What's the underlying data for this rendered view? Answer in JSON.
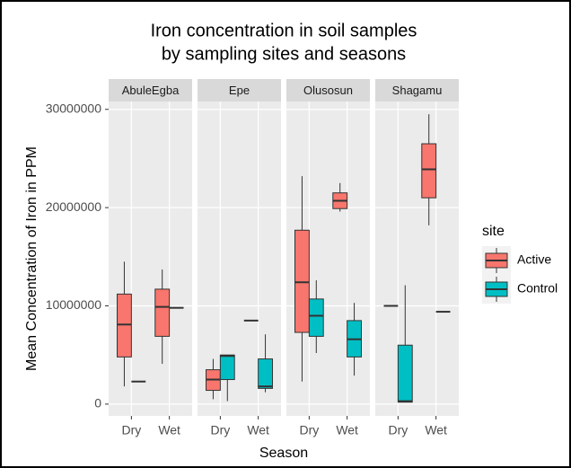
{
  "chart_data": {
    "type": "box",
    "title": [
      "Iron concentration in soil samples",
      "by sampling sites and seasons"
    ],
    "xlabel": "Season",
    "ylabel": "Mean Concentration of Iron in PPM",
    "ylim": [
      -1200000,
      30800000
    ],
    "yticks": [
      0,
      10000000,
      20000000,
      30000000
    ],
    "grid": true,
    "legend_title": "site",
    "legend_position": "right",
    "facets": [
      "AbuleEgba",
      "Epe",
      "Olusosun",
      "Shagamu"
    ],
    "categories": [
      "Dry",
      "Wet"
    ],
    "series": [
      {
        "name": "Active",
        "color": "#F8766D",
        "values": [
          [
            {
              "min": 1800000,
              "q1": 4800000,
              "median": 8100000,
              "q3": 11200000,
              "max": 14500000
            },
            {
              "min": 4100000,
              "q1": 6900000,
              "median": 9900000,
              "q3": 11700000,
              "max": 13700000
            }
          ],
          [
            {
              "min": 500000,
              "q1": 1400000,
              "median": 2500000,
              "q3": 3500000,
              "max": 4600000
            },
            {
              "min": 8500000,
              "q1": 8500000,
              "median": 8500000,
              "q3": 8500000,
              "max": 8500000
            }
          ],
          [
            {
              "min": 2300000,
              "q1": 7300000,
              "median": 12400000,
              "q3": 17700000,
              "max": 23200000
            },
            {
              "min": 19600000,
              "q1": 19900000,
              "median": 20700000,
              "q3": 21500000,
              "max": 22500000
            }
          ],
          [
            {
              "min": 10000000,
              "q1": 10000000,
              "median": 10000000,
              "q3": 10000000,
              "max": 10000000
            },
            {
              "min": 18200000,
              "q1": 21000000,
              "median": 23900000,
              "q3": 26500000,
              "max": 29500000
            }
          ]
        ]
      },
      {
        "name": "Control",
        "color": "#00BFC4",
        "values": [
          [
            {
              "min": 2300000,
              "q1": 2300000,
              "median": 2300000,
              "q3": 2300000,
              "max": 2300000
            },
            {
              "min": 9800000,
              "q1": 9800000,
              "median": 9800000,
              "q3": 9800000,
              "max": 9800000
            }
          ],
          [
            {
              "min": 300000,
              "q1": 2500000,
              "median": 4900000,
              "q3": 5000000,
              "max": 5000000
            },
            {
              "min": 1200000,
              "q1": 1600000,
              "median": 1800000,
              "q3": 4600000,
              "max": 7100000
            }
          ],
          [
            {
              "min": 5200000,
              "q1": 6900000,
              "median": 9000000,
              "q3": 10700000,
              "max": 12600000
            },
            {
              "min": 2900000,
              "q1": 4800000,
              "median": 6600000,
              "q3": 8500000,
              "max": 10300000
            }
          ],
          [
            {
              "min": 200000,
              "q1": 200000,
              "median": 300000,
              "q3": 6000000,
              "max": 12100000
            },
            {
              "min": 9400000,
              "q1": 9400000,
              "median": 9400000,
              "q3": 9400000,
              "max": 9400000
            }
          ]
        ]
      }
    ]
  }
}
